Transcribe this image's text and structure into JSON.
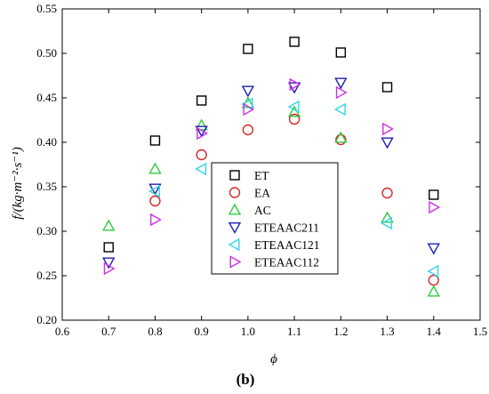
{
  "chart_data": {
    "type": "scatter",
    "xlabel": "ϕ",
    "ylabel": "f/(kg·m⁻²·s⁻¹)",
    "panel_label": "(b)",
    "xlim": [
      0.6,
      1.5
    ],
    "ylim": [
      0.2,
      0.55
    ],
    "x_ticks": [
      "0.6",
      "0.7",
      "0.8",
      "0.9",
      "1.0",
      "1.1",
      "1.2",
      "1.3",
      "1.4",
      "1.5"
    ],
    "y_ticks": [
      "0.20",
      "0.25",
      "0.30",
      "0.35",
      "0.40",
      "0.45",
      "0.50",
      "0.55"
    ],
    "grid": false,
    "legend_position": "center",
    "x": [
      0.7,
      0.8,
      0.9,
      1.0,
      1.1,
      1.2,
      1.3,
      1.4
    ],
    "series": [
      {
        "name": "ET",
        "marker": "square",
        "color": "#000000",
        "values": [
          0.282,
          0.402,
          0.447,
          0.505,
          0.513,
          0.501,
          0.462,
          0.341
        ]
      },
      {
        "name": "EA",
        "marker": "circle",
        "color": "#d62728",
        "values": [
          null,
          0.334,
          0.386,
          0.414,
          0.426,
          0.403,
          0.343,
          0.245
        ]
      },
      {
        "name": "AC",
        "marker": "triangle-up",
        "color": "#2ecc40",
        "values": [
          0.306,
          0.37,
          0.419,
          0.444,
          0.434,
          0.405,
          0.315,
          0.232
        ]
      },
      {
        "name": "ETEAAC211",
        "marker": "triangle-down",
        "color": "#1f1fb4",
        "values": [
          0.265,
          0.348,
          0.413,
          0.458,
          0.462,
          0.467,
          0.4,
          0.281
        ]
      },
      {
        "name": "ETEAAC121",
        "marker": "triangle-left",
        "color": "#33d6e6",
        "values": [
          null,
          0.345,
          0.37,
          0.443,
          0.44,
          0.437,
          0.309,
          0.255
        ]
      },
      {
        "name": "ETEAAC112",
        "marker": "triangle-right",
        "color": "#cc33e6",
        "values": [
          0.258,
          0.313,
          0.41,
          0.437,
          0.465,
          0.456,
          0.415,
          0.327
        ]
      }
    ]
  }
}
